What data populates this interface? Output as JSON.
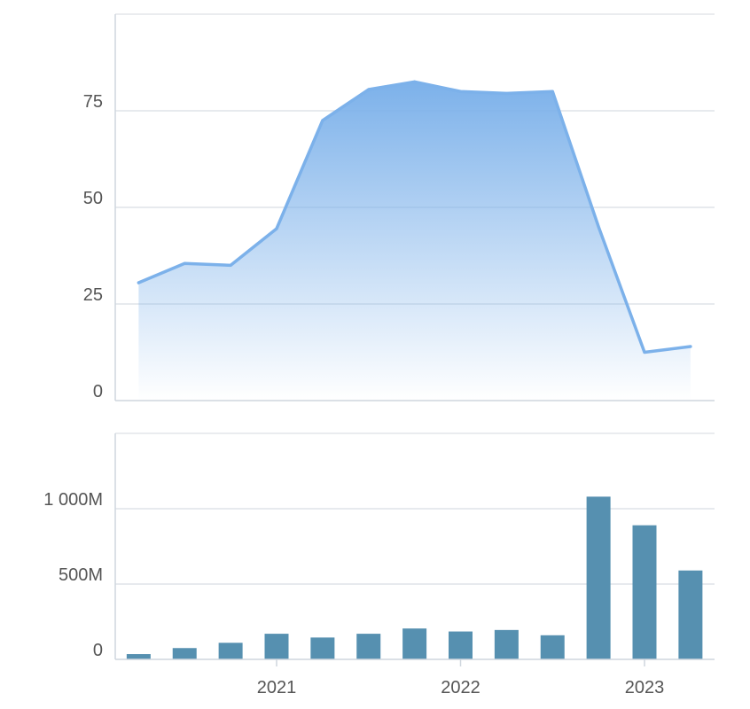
{
  "chart_data": [
    {
      "type": "area",
      "title": "",
      "xlabel": "",
      "ylabel": "",
      "ylim": [
        0,
        100
      ],
      "y_ticks": [
        {
          "value": 0,
          "label": "0"
        },
        {
          "value": 25,
          "label": "25"
        },
        {
          "value": 50,
          "label": "50"
        },
        {
          "value": 75,
          "label": "75"
        }
      ],
      "x": [
        "2020-04",
        "2020-07",
        "2020-10",
        "2021-01",
        "2021-04",
        "2021-07",
        "2021-10",
        "2022-01",
        "2022-04",
        "2022-07",
        "2022-10",
        "2023-01",
        "2023-04"
      ],
      "values": [
        30.5,
        35.5,
        35,
        44.5,
        72.5,
        80.5,
        82.5,
        80,
        79.5,
        80,
        45,
        12.5,
        14
      ],
      "grid": true,
      "color": "#7cb1ea"
    },
    {
      "type": "bar",
      "title": "",
      "xlabel": "",
      "ylabel": "",
      "ylim": [
        0,
        1500
      ],
      "y_ticks": [
        {
          "value": 0,
          "label": "0"
        },
        {
          "value": 500,
          "label": "500M"
        },
        {
          "value": 1000,
          "label": "1 000M"
        }
      ],
      "x_ticks": [
        {
          "date": "2021-01",
          "label": "2021"
        },
        {
          "date": "2022-01",
          "label": "2022"
        },
        {
          "date": "2023-01",
          "label": "2023"
        }
      ],
      "x": [
        "2020-04",
        "2020-07",
        "2020-10",
        "2021-01",
        "2021-04",
        "2021-07",
        "2021-10",
        "2022-01",
        "2022-04",
        "2022-07",
        "2022-10",
        "2023-01",
        "2023-04"
      ],
      "values": [
        35,
        75,
        110,
        170,
        145,
        170,
        205,
        185,
        195,
        160,
        1080,
        890,
        590
      ],
      "units": "M",
      "grid": true,
      "color": "#5690b0"
    }
  ]
}
